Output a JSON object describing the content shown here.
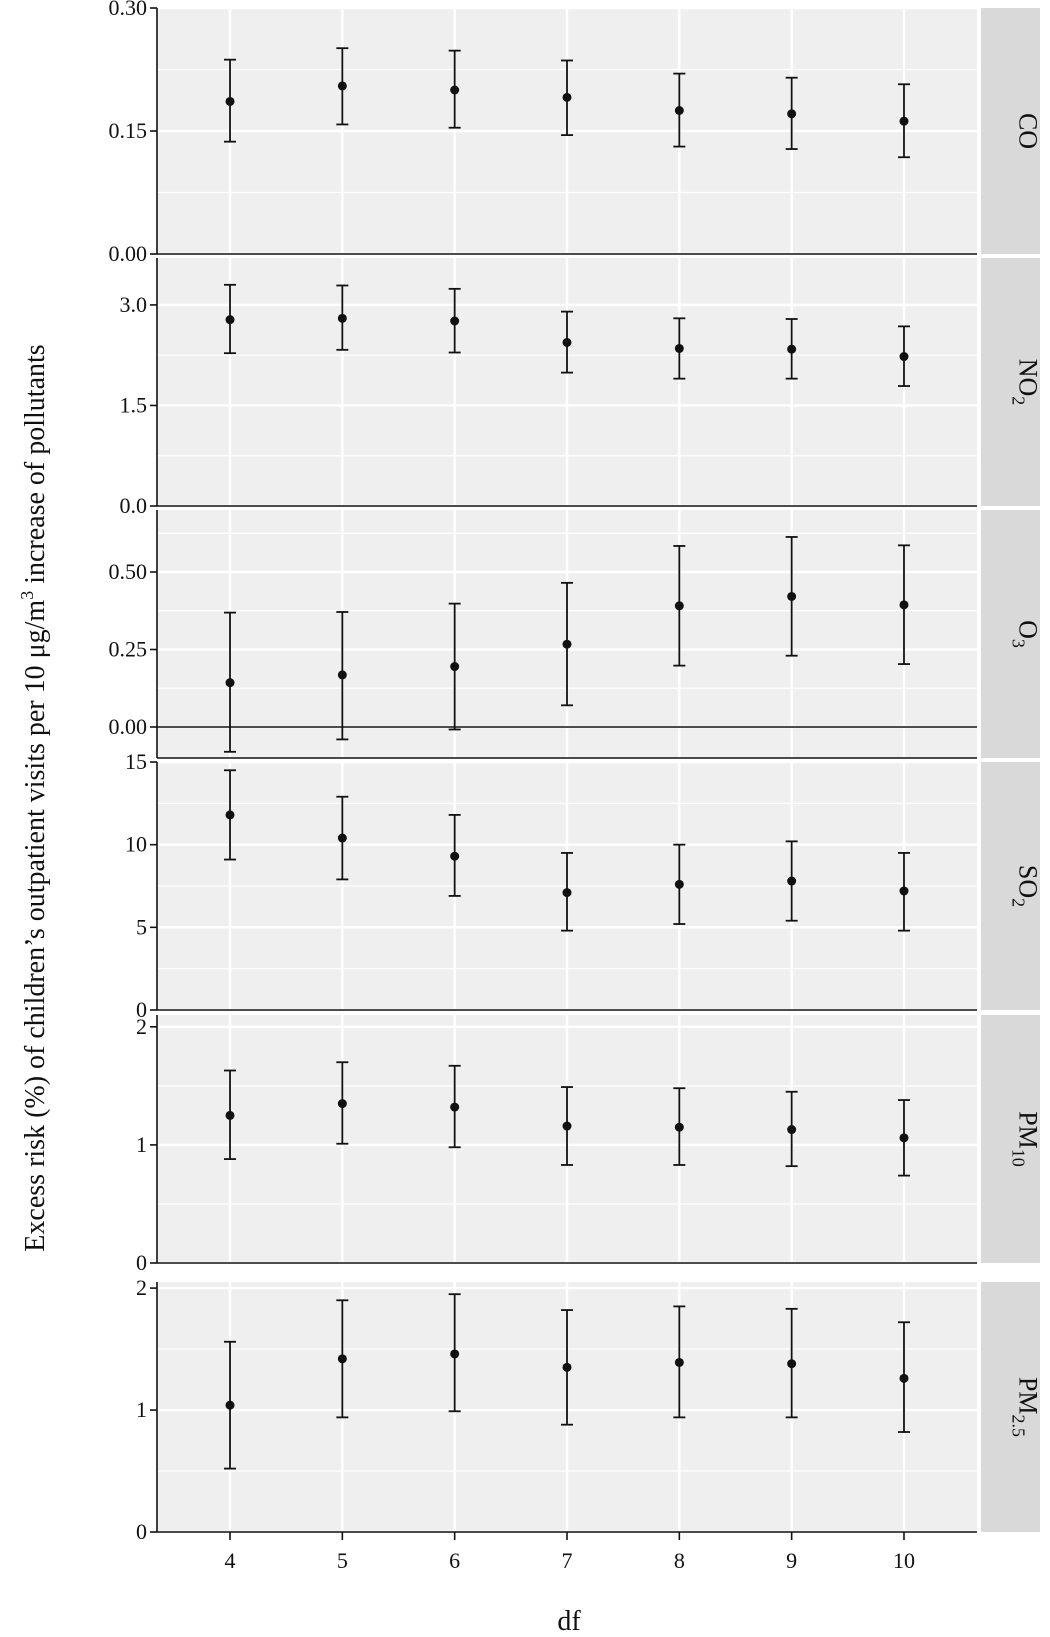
{
  "chart_data": {
    "type": "scatter",
    "subtype": "point-errorbar-faceted",
    "xlabel": "df",
    "ylabel": {
      "before": "Excess risk (%) of children’s outpatient visits per 10 μg/m",
      "sup": "3",
      "after": " increase of pollutants"
    },
    "x_ticks": [
      4,
      5,
      6,
      7,
      8,
      9,
      10
    ],
    "xlim": [
      3.35,
      10.65
    ],
    "grid": true,
    "facets": [
      {
        "strip": {
          "main": "CO",
          "sub": ""
        },
        "ylim": [
          0,
          0.3
        ],
        "y_ticks": [
          0,
          0.15,
          0.3
        ],
        "y_tick_labels": [
          "0.00",
          "0.15",
          "0.30"
        ],
        "zero_line": false,
        "points": [
          {
            "x": 4,
            "y": 0.186,
            "lo": 0.137,
            "hi": 0.237
          },
          {
            "x": 5,
            "y": 0.205,
            "lo": 0.158,
            "hi": 0.251
          },
          {
            "x": 6,
            "y": 0.2,
            "lo": 0.154,
            "hi": 0.248
          },
          {
            "x": 7,
            "y": 0.191,
            "lo": 0.145,
            "hi": 0.236
          },
          {
            "x": 8,
            "y": 0.175,
            "lo": 0.131,
            "hi": 0.22
          },
          {
            "x": 9,
            "y": 0.171,
            "lo": 0.128,
            "hi": 0.215
          },
          {
            "x": 10,
            "y": 0.162,
            "lo": 0.118,
            "hi": 0.207
          }
        ]
      },
      {
        "strip": {
          "main": "NO",
          "sub": "2"
        },
        "ylim": [
          0,
          3.7
        ],
        "y_ticks": [
          0,
          1.5,
          3
        ],
        "y_tick_labels": [
          "0.0",
          "1.5",
          "3.0"
        ],
        "zero_line": false,
        "points": [
          {
            "x": 4,
            "y": 2.78,
            "lo": 2.28,
            "hi": 3.3
          },
          {
            "x": 5,
            "y": 2.8,
            "lo": 2.33,
            "hi": 3.29
          },
          {
            "x": 6,
            "y": 2.76,
            "lo": 2.29,
            "hi": 3.24
          },
          {
            "x": 7,
            "y": 2.44,
            "lo": 1.99,
            "hi": 2.9
          },
          {
            "x": 8,
            "y": 2.35,
            "lo": 1.9,
            "hi": 2.8
          },
          {
            "x": 9,
            "y": 2.34,
            "lo": 1.9,
            "hi": 2.79
          },
          {
            "x": 10,
            "y": 2.23,
            "lo": 1.79,
            "hi": 2.68
          }
        ]
      },
      {
        "strip": {
          "main": "O",
          "sub": "3"
        },
        "ylim": [
          -0.1,
          0.7
        ],
        "y_ticks": [
          0,
          0.25,
          0.5
        ],
        "y_tick_labels": [
          "0.00",
          "0.25",
          "0.50"
        ],
        "zero_line": true,
        "points": [
          {
            "x": 4,
            "y": 0.143,
            "lo": -0.08,
            "hi": 0.369
          },
          {
            "x": 5,
            "y": 0.168,
            "lo": -0.04,
            "hi": 0.371
          },
          {
            "x": 6,
            "y": 0.195,
            "lo": -0.008,
            "hi": 0.398
          },
          {
            "x": 7,
            "y": 0.267,
            "lo": 0.07,
            "hi": 0.465
          },
          {
            "x": 8,
            "y": 0.391,
            "lo": 0.198,
            "hi": 0.584
          },
          {
            "x": 9,
            "y": 0.421,
            "lo": 0.23,
            "hi": 0.613
          },
          {
            "x": 10,
            "y": 0.394,
            "lo": 0.203,
            "hi": 0.586
          }
        ]
      },
      {
        "strip": {
          "main": "SO",
          "sub": "2"
        },
        "ylim": [
          0,
          15
        ],
        "y_ticks": [
          0,
          5,
          10,
          15
        ],
        "y_tick_labels": [
          "0",
          "5",
          "10",
          "15"
        ],
        "zero_line": false,
        "points": [
          {
            "x": 4,
            "y": 11.8,
            "lo": 9.1,
            "hi": 14.5
          },
          {
            "x": 5,
            "y": 10.4,
            "lo": 7.9,
            "hi": 12.9
          },
          {
            "x": 6,
            "y": 9.3,
            "lo": 6.9,
            "hi": 11.8
          },
          {
            "x": 7,
            "y": 7.1,
            "lo": 4.8,
            "hi": 9.5
          },
          {
            "x": 8,
            "y": 7.6,
            "lo": 5.2,
            "hi": 10.0
          },
          {
            "x": 9,
            "y": 7.8,
            "lo": 5.4,
            "hi": 10.2
          },
          {
            "x": 10,
            "y": 7.2,
            "lo": 4.8,
            "hi": 9.5
          }
        ]
      },
      {
        "strip": {
          "main": "PM",
          "sub": "10"
        },
        "ylim": [
          0,
          2.1
        ],
        "y_ticks": [
          0,
          1,
          2
        ],
        "y_tick_labels": [
          "0",
          "1",
          "2"
        ],
        "zero_line": false,
        "points": [
          {
            "x": 4,
            "y": 1.25,
            "lo": 0.88,
            "hi": 1.63
          },
          {
            "x": 5,
            "y": 1.35,
            "lo": 1.01,
            "hi": 1.7
          },
          {
            "x": 6,
            "y": 1.32,
            "lo": 0.98,
            "hi": 1.67
          },
          {
            "x": 7,
            "y": 1.16,
            "lo": 0.83,
            "hi": 1.49
          },
          {
            "x": 8,
            "y": 1.15,
            "lo": 0.83,
            "hi": 1.48
          },
          {
            "x": 9,
            "y": 1.13,
            "lo": 0.82,
            "hi": 1.45
          },
          {
            "x": 10,
            "y": 1.06,
            "lo": 0.74,
            "hi": 1.38
          }
        ]
      },
      {
        "strip": {
          "main": "PM",
          "sub": "2.5"
        },
        "ylim": [
          0,
          2.05
        ],
        "y_ticks": [
          0,
          1,
          2
        ],
        "y_tick_labels": [
          "0",
          "1",
          "2"
        ],
        "zero_line": false,
        "points": [
          {
            "x": 4,
            "y": 1.04,
            "lo": 0.52,
            "hi": 1.56
          },
          {
            "x": 5,
            "y": 1.42,
            "lo": 0.94,
            "hi": 1.9
          },
          {
            "x": 6,
            "y": 1.46,
            "lo": 0.99,
            "hi": 1.95
          },
          {
            "x": 7,
            "y": 1.35,
            "lo": 0.88,
            "hi": 1.82
          },
          {
            "x": 8,
            "y": 1.39,
            "lo": 0.94,
            "hi": 1.85
          },
          {
            "x": 9,
            "y": 1.38,
            "lo": 0.94,
            "hi": 1.83
          },
          {
            "x": 10,
            "y": 1.26,
            "lo": 0.82,
            "hi": 1.72
          }
        ]
      }
    ]
  }
}
